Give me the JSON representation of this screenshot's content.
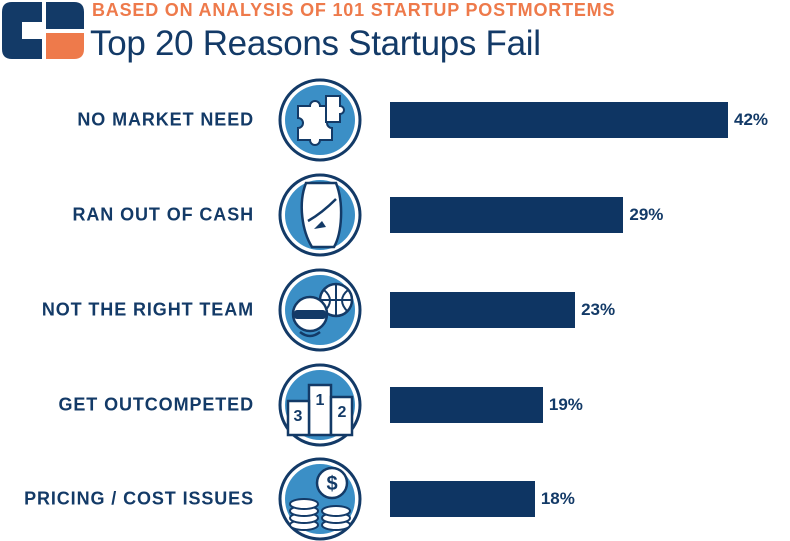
{
  "header": {
    "subtitle": "BASED ON ANALYSIS OF 101 STARTUP POSTMORTEMS",
    "title": "Top 20 Reasons Startups Fail"
  },
  "colors": {
    "bar": "#0e3563",
    "text": "#133a67",
    "accent": "#ee7a4b",
    "icon_fill": "#3b8fc6"
  },
  "chart_data": {
    "type": "bar",
    "orientation": "horizontal",
    "title": "Top 20 Reasons Startups Fail",
    "subtitle": "BASED ON ANALYSIS OF 101 STARTUP POSTMORTEMS",
    "categories": [
      "NO MARKET NEED",
      "RAN OUT OF CASH",
      "NOT THE RIGHT TEAM",
      "GET OUTCOMPETED",
      "PRICING / COST ISSUES"
    ],
    "values": [
      42,
      29,
      23,
      19,
      18
    ],
    "value_labels": [
      "42%",
      "29%",
      "23%",
      "19%",
      "18%"
    ],
    "icons": [
      "puzzle-icon",
      "empty-pocket-icon",
      "team-icon",
      "podium-icon",
      "coins-icon"
    ],
    "grid": false,
    "legend": "none"
  }
}
